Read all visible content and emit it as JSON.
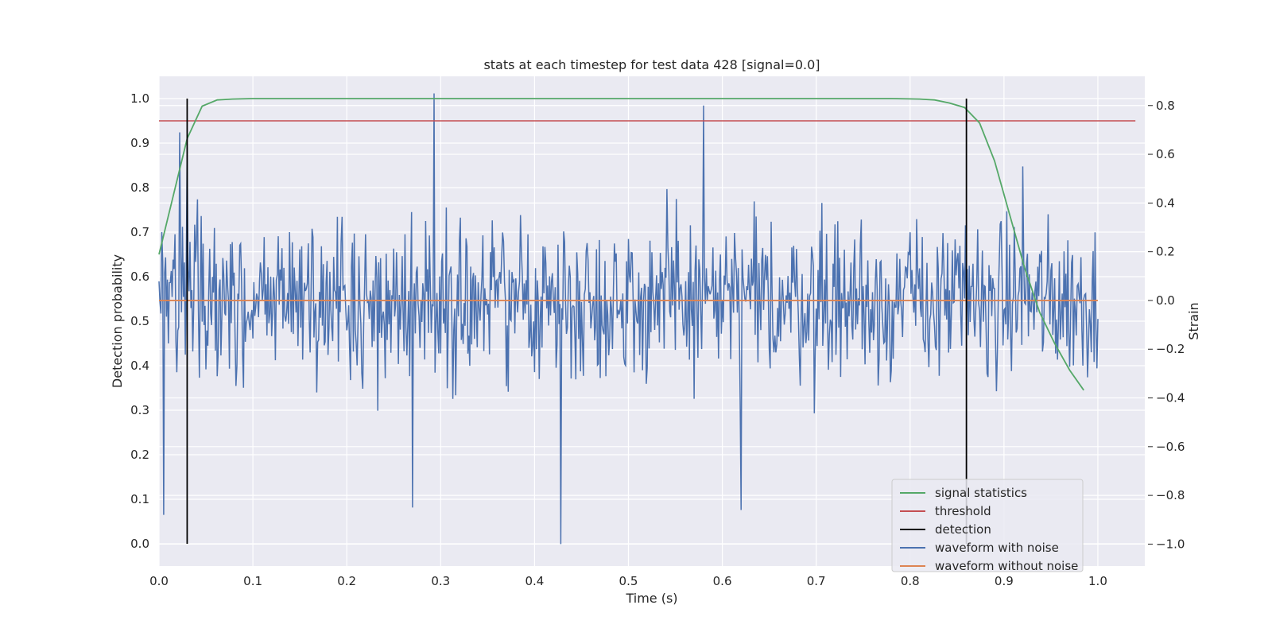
{
  "chart_data": {
    "type": "line",
    "title": "stats at each timestep for test data 428 [signal=0.0]",
    "xlabel": "Time (s)",
    "ylabel": "Detection probability",
    "y2label": "Strain",
    "xlim": [
      0.0,
      1.05
    ],
    "ylim": [
      -0.05,
      1.05
    ],
    "y2lim": [
      -1.09,
      0.92
    ],
    "grid": true,
    "legend_position": "bottom-right",
    "x_ticks": [
      "0.0",
      "0.1",
      "0.2",
      "0.3",
      "0.4",
      "0.5",
      "0.6",
      "0.7",
      "0.8",
      "0.9",
      "1.0"
    ],
    "y_ticks": [
      "0.0",
      "0.1",
      "0.2",
      "0.3",
      "0.4",
      "0.5",
      "0.6",
      "0.7",
      "0.8",
      "0.9",
      "1.0"
    ],
    "y2_ticks": [
      "−1.0",
      "−0.8",
      "−0.6",
      "−0.4",
      "−0.2",
      "0.0",
      "0.2",
      "0.4",
      "0.6",
      "0.8"
    ],
    "series": [
      {
        "name": "signal statistics",
        "color": "#55a868",
        "axis": "left",
        "x": [
          0.0,
          0.015,
          0.03,
          0.046,
          0.062,
          0.078,
          0.1,
          0.2,
          0.3,
          0.4,
          0.5,
          0.6,
          0.7,
          0.78,
          0.81,
          0.826,
          0.842,
          0.858,
          0.874,
          0.89,
          0.906,
          0.922,
          0.938,
          0.954,
          0.97,
          0.985
        ],
        "y": [
          0.65,
          0.78,
          0.91,
          0.983,
          0.997,
          0.999,
          1.0,
          1.0,
          1.0,
          1.0,
          1.0,
          1.0,
          1.0,
          1.0,
          0.999,
          0.997,
          0.99,
          0.98,
          0.945,
          0.86,
          0.74,
          0.62,
          0.52,
          0.45,
          0.39,
          0.345
        ]
      },
      {
        "name": "threshold",
        "color": "#c44e52",
        "axis": "left",
        "x": [
          0.0,
          1.04
        ],
        "y": [
          0.95,
          0.95
        ]
      },
      {
        "name": "detection",
        "color": "#000000",
        "axis": "left",
        "x": [
          0.03,
          0.86
        ],
        "y": [
          1.0,
          1.0
        ]
      },
      {
        "name": "waveform with noise",
        "color": "#4c72b0",
        "axis": "right",
        "x_range": [
          0.0,
          1.0
        ],
        "samples": 1000,
        "peaks": [
          [
            0.293,
            0.85
          ],
          [
            0.428,
            -1.0
          ],
          [
            0.005,
            -0.88
          ],
          [
            0.58,
            0.8
          ],
          [
            0.022,
            0.69
          ],
          [
            0.03,
            0.63
          ],
          [
            0.27,
            -0.85
          ],
          [
            0.92,
            0.55
          ],
          [
            0.62,
            -0.86
          ]
        ]
      },
      {
        "name": "waveform without noise",
        "color": "#dd8452",
        "axis": "right",
        "x": [
          0.0,
          1.0
        ],
        "y": [
          0.0,
          0.0
        ]
      }
    ]
  }
}
